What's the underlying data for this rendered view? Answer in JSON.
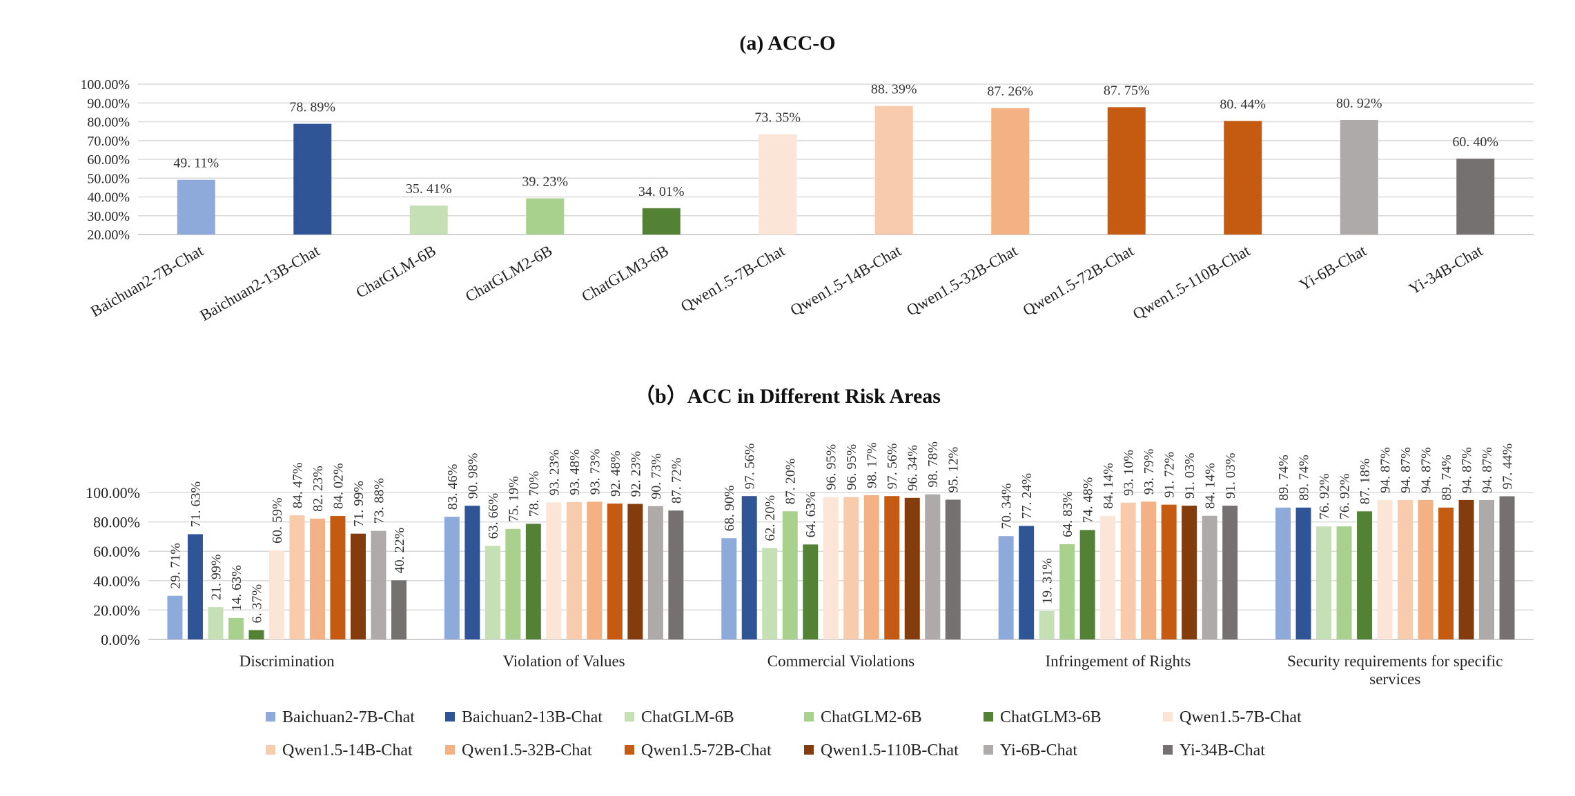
{
  "chart_data": [
    {
      "type": "bar",
      "title": "(a)  ACC-O",
      "categories": [
        "Baichuan2-7B-Chat",
        "Baichuan2-13B-Chat",
        "ChatGLM-6B",
        "ChatGLM2-6B",
        "ChatGLM3-6B",
        "Qwen1.5-7B-Chat",
        "Qwen1.5-14B-Chat",
        "Qwen1.5-32B-Chat",
        "Qwen1.5-72B-Chat",
        "Qwen1.5-110B-Chat",
        "Yi-6B-Chat",
        "Yi-34B-Chat"
      ],
      "values": [
        49.11,
        78.89,
        35.41,
        39.23,
        34.01,
        73.35,
        88.39,
        87.26,
        87.75,
        80.44,
        80.92,
        60.4
      ],
      "value_labels": [
        "49. 11%",
        "78. 89%",
        "35. 41%",
        "39. 23%",
        "34. 01%",
        "73. 35%",
        "88. 39%",
        "87. 26%",
        "87. 75%",
        "80. 44%",
        "80. 92%",
        "60. 40%"
      ],
      "colors": [
        "#8eaadb",
        "#2f5597",
        "#c5e0b4",
        "#a9d18e",
        "#548235",
        "#fbe5d6",
        "#f8cbad",
        "#f4b183",
        "#c55a11",
        "#c55a11",
        "#aeaaaa",
        "#767171"
      ],
      "yticks": [
        "100.00%",
        "90.00%",
        "80.00%",
        "70.00%",
        "60.00%",
        "50.00%",
        "40.00%",
        "30.00%",
        "20.00%"
      ],
      "ylim": [
        20,
        100
      ],
      "xlabel": "",
      "ylabel": "",
      "grid": true
    },
    {
      "type": "bar",
      "title": "（b）ACC in Different Risk Areas",
      "categories": [
        "Discrimination",
        "Violation of Values",
        "Commercial Violations",
        "Infringement of Rights",
        "Security requirements for specific services"
      ],
      "category_lines": [
        [
          "Discrimination"
        ],
        [
          "Violation of Values"
        ],
        [
          "Commercial Violations"
        ],
        [
          "Infringement of Rights"
        ],
        [
          "Security requirements for specific",
          "services"
        ]
      ],
      "series": [
        {
          "name": "Baichuan2-7B-Chat",
          "color": "#8eaadb",
          "values": [
            29.71,
            83.46,
            68.9,
            70.34,
            89.74
          ],
          "labels": [
            "29. 71%",
            "83. 46%",
            "68. 90%",
            "70. 34%",
            "89. 74%"
          ]
        },
        {
          "name": "Baichuan2-13B-Chat",
          "color": "#2f5597",
          "values": [
            71.63,
            90.98,
            97.56,
            77.24,
            89.74
          ],
          "labels": [
            "71. 63%",
            "90. 98%",
            "97. 56%",
            "77. 24%",
            "89. 74%"
          ]
        },
        {
          "name": "ChatGLM-6B",
          "color": "#c5e0b4",
          "values": [
            21.99,
            63.66,
            62.2,
            19.31,
            76.92
          ],
          "labels": [
            "21. 99%",
            "63. 66%",
            "62. 20%",
            "19. 31%",
            "76. 92%"
          ]
        },
        {
          "name": "ChatGLM2-6B",
          "color": "#a9d18e",
          "values": [
            14.63,
            75.19,
            87.2,
            64.83,
            76.92
          ],
          "labels": [
            "14. 63%",
            "75. 19%",
            "87. 20%",
            "64. 83%",
            "76. 92%"
          ]
        },
        {
          "name": "ChatGLM3-6B",
          "color": "#548235",
          "values": [
            6.37,
            78.7,
            64.63,
            74.48,
            87.18
          ],
          "labels": [
            "6. 37%",
            "78. 70%",
            "64. 63%",
            "74. 48%",
            "87. 18%"
          ]
        },
        {
          "name": "Qwen1.5-7B-Chat",
          "color": "#fbe5d6",
          "values": [
            60.59,
            93.23,
            96.95,
            84.14,
            94.87
          ],
          "labels": [
            "60. 59%",
            "93. 23%",
            "96. 95%",
            "84. 14%",
            "94. 87%"
          ]
        },
        {
          "name": "Qwen1.5-14B-Chat",
          "color": "#f8cbad",
          "values": [
            84.47,
            93.48,
            96.95,
            93.1,
            94.87
          ],
          "labels": [
            "84. 47%",
            "93. 48%",
            "96. 95%",
            "93. 10%",
            "94. 87%"
          ]
        },
        {
          "name": "Qwen1.5-32B-Chat",
          "color": "#f4b183",
          "values": [
            82.23,
            93.73,
            98.17,
            93.79,
            94.87
          ],
          "labels": [
            "82. 23%",
            "93. 73%",
            "98. 17%",
            "93. 79%",
            "94. 87%"
          ]
        },
        {
          "name": "Qwen1.5-72B-Chat",
          "color": "#c55a11",
          "values": [
            84.02,
            92.48,
            97.56,
            91.72,
            89.74
          ],
          "labels": [
            "84. 02%",
            "92. 48%",
            "97. 56%",
            "91. 72%",
            "89. 74%"
          ]
        },
        {
          "name": "Qwen1.5-110B-Chat",
          "color": "#843c0c",
          "values": [
            71.99,
            92.23,
            96.34,
            91.03,
            94.87
          ],
          "labels": [
            "71. 99%",
            "92. 23%",
            "96. 34%",
            "91. 03%",
            "94. 87%"
          ]
        },
        {
          "name": "Yi-6B-Chat",
          "color": "#aeaaaa",
          "values": [
            73.88,
            90.73,
            98.78,
            84.14,
            94.87
          ],
          "labels": [
            "73. 88%",
            "90. 73%",
            "98. 78%",
            "84. 14%",
            "94. 87%"
          ]
        },
        {
          "name": "Yi-34B-Chat",
          "color": "#767171",
          "values": [
            40.22,
            87.72,
            95.12,
            91.03,
            97.44
          ],
          "labels": [
            "40. 22%",
            "87. 72%",
            "95. 12%",
            "91. 03%",
            "97. 44%"
          ]
        }
      ],
      "yticks": [
        "100.00%",
        "80.00%",
        "60.00%",
        "40.00%",
        "20.00%",
        "0.00%"
      ],
      "ylim": [
        0,
        100
      ],
      "xlabel": "",
      "ylabel": "",
      "grid": true,
      "legend_position": "bottom"
    }
  ]
}
